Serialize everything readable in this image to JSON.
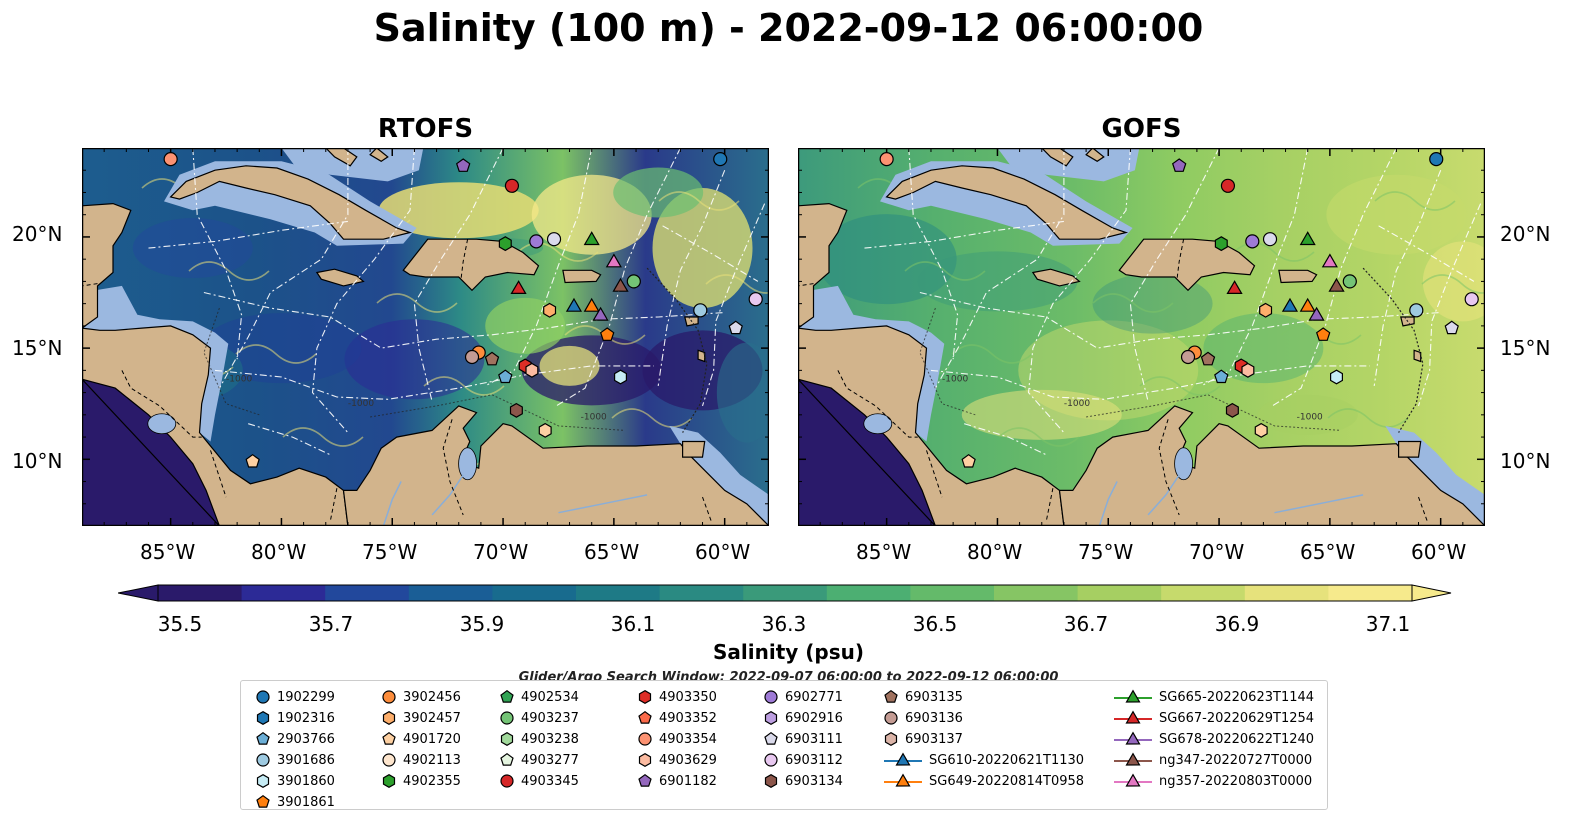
{
  "title": "Salinity (100 m) - 2022-09-12 06:00:00",
  "panels": [
    {
      "title": "RTOFS"
    },
    {
      "title": "GOFS"
    }
  ],
  "map": {
    "lon_range": [
      -89,
      -58
    ],
    "lat_range": [
      7,
      24
    ],
    "lon_ticks": [
      "85°W",
      "80°W",
      "75°W",
      "70°W",
      "65°W",
      "60°W"
    ],
    "lat_ticks": [
      "20°N",
      "15°N",
      "10°N"
    ],
    "contour_labels": [
      "-1000",
      "-1000",
      "-1000"
    ]
  },
  "colorbar": {
    "title": "Salinity (psu)",
    "tick_labels": [
      "35.5",
      "35.7",
      "35.9",
      "36.1",
      "36.3",
      "36.5",
      "36.7",
      "36.9",
      "37.1"
    ],
    "colors": [
      "#2a1a6a",
      "#2c2a96",
      "#22489c",
      "#1a5e96",
      "#186b8e",
      "#1e7a86",
      "#2a8a82",
      "#3a9a7a",
      "#4caf72",
      "#64ba6a",
      "#86c564",
      "#a6cf62",
      "#c6da6c",
      "#e6e27c",
      "#f6ea8c"
    ]
  },
  "search_window": "Glider/Argo Search Window: 2022-09-07 06:00:00 to 2022-09-12 06:00:00",
  "legend": {
    "columns": [
      [
        {
          "label": "1902299",
          "shape": "circle",
          "color": "#1f77b4"
        },
        {
          "label": "1902316",
          "shape": "hexagon",
          "color": "#1f77b4"
        },
        {
          "label": "2903766",
          "shape": "pentagon",
          "color": "#6baed6"
        },
        {
          "label": "3901686",
          "shape": "circle",
          "color": "#9ecae1"
        },
        {
          "label": "3901860",
          "shape": "hexagon",
          "color": "#c6ecf5"
        },
        {
          "label": "3901861",
          "shape": "pentagon",
          "color": "#ff7f0e"
        }
      ],
      [
        {
          "label": "3902456",
          "shape": "circle",
          "color": "#fd8d3c"
        },
        {
          "label": "3902457",
          "shape": "hexagon",
          "color": "#fdae6b"
        },
        {
          "label": "4901720",
          "shape": "pentagon",
          "color": "#fdd0a2"
        },
        {
          "label": "4902113",
          "shape": "circle",
          "color": "#fee6ce"
        },
        {
          "label": "4902355",
          "shape": "hexagon",
          "color": "#2ca02c"
        }
      ],
      [
        {
          "label": "4902534",
          "shape": "pentagon",
          "color": "#31a354"
        },
        {
          "label": "4903237",
          "shape": "circle",
          "color": "#74c476"
        },
        {
          "label": "4903238",
          "shape": "hexagon",
          "color": "#a1d99b"
        },
        {
          "label": "4903277",
          "shape": "pentagon",
          "color": "#e5f5e0"
        },
        {
          "label": "4903345",
          "shape": "circle",
          "color": "#d62728"
        }
      ],
      [
        {
          "label": "4903350",
          "shape": "hexagon",
          "color": "#de2d26"
        },
        {
          "label": "4903352",
          "shape": "pentagon",
          "color": "#fb6a4a"
        },
        {
          "label": "4903354",
          "shape": "circle",
          "color": "#fc9272"
        },
        {
          "label": "4903629",
          "shape": "hexagon",
          "color": "#fcbba1"
        },
        {
          "label": "6901182",
          "shape": "pentagon",
          "color": "#9467bd"
        }
      ],
      [
        {
          "label": "6902771",
          "shape": "circle",
          "color": "#9e7ad6"
        },
        {
          "label": "6902916",
          "shape": "hexagon",
          "color": "#bc9ee0"
        },
        {
          "label": "6903111",
          "shape": "pentagon",
          "color": "#dadaeb"
        },
        {
          "label": "6903112",
          "shape": "circle",
          "color": "#e8c8f0"
        },
        {
          "label": "6903134",
          "shape": "hexagon",
          "color": "#8c564b"
        }
      ],
      [
        {
          "label": "6903135",
          "shape": "pentagon",
          "color": "#a0725f"
        },
        {
          "label": "6903136",
          "shape": "circle",
          "color": "#c49c94"
        },
        {
          "label": "6903137",
          "shape": "hexagon",
          "color": "#dbb4a8"
        },
        {
          "label": "SG610-20220621T1130",
          "shape": "triangle",
          "color": "#1f77b4"
        },
        {
          "label": "SG649-20220814T0958",
          "shape": "triangle",
          "color": "#ff7f0e"
        }
      ],
      [
        {
          "label": "SG665-20220623T1144",
          "shape": "triangle",
          "color": "#2ca02c"
        },
        {
          "label": "SG667-20220629T1254",
          "shape": "triangle",
          "color": "#d62728"
        },
        {
          "label": "SG678-20220622T1240",
          "shape": "triangle",
          "color": "#9467bd"
        },
        {
          "label": "ng347-20220727T0000",
          "shape": "triangle",
          "color": "#8c564b"
        },
        {
          "label": "ng357-20220803T0000",
          "shape": "triangle",
          "color": "#e377c2"
        }
      ]
    ]
  },
  "observations": [
    {
      "id": "4903354",
      "shape": "circle",
      "color": "#fc9272",
      "lon": -85.0,
      "lat": 23.5
    },
    {
      "id": "1902299",
      "shape": "circle",
      "color": "#1f77b4",
      "lon": -60.2,
      "lat": 23.5
    },
    {
      "id": "6901182",
      "shape": "pentagon",
      "color": "#9467bd",
      "lon": -71.8,
      "lat": 23.2
    },
    {
      "id": "4903345",
      "shape": "circle",
      "color": "#d62728",
      "lon": -69.6,
      "lat": 22.3
    },
    {
      "id": "4902355",
      "shape": "hexagon",
      "color": "#2ca02c",
      "lon": -69.9,
      "lat": 19.7
    },
    {
      "id": "6902771",
      "shape": "circle",
      "color": "#9e7ad6",
      "lon": -68.5,
      "lat": 19.8
    },
    {
      "id": "6903112",
      "shape": "circle",
      "color": "#dadaeb",
      "lon": -67.7,
      "lat": 19.9
    },
    {
      "id": "SG665-20220623T1144",
      "shape": "triangle",
      "color": "#2ca02c",
      "lon": -66.0,
      "lat": 19.9
    },
    {
      "id": "ng357-20220803T0000",
      "shape": "triangle",
      "color": "#e377c2",
      "lon": -65.0,
      "lat": 18.9
    },
    {
      "id": "SG667-20220629T1254",
      "shape": "triangle",
      "color": "#d62728",
      "lon": -69.3,
      "lat": 17.7
    },
    {
      "id": "ng347-20220727T0000",
      "shape": "triangle",
      "color": "#8c564b",
      "lon": -64.7,
      "lat": 17.8
    },
    {
      "id": "4903238",
      "shape": "circle",
      "color": "#74c476",
      "lon": -64.1,
      "lat": 18.0
    },
    {
      "id": "6903112-b",
      "shape": "circle",
      "color": "#e8c8f0",
      "lon": -58.6,
      "lat": 17.2
    },
    {
      "id": "SG610-20220621T1130",
      "shape": "triangle",
      "color": "#1f77b4",
      "lon": -66.8,
      "lat": 16.9
    },
    {
      "id": "SG649-20220814T0958",
      "shape": "triangle",
      "color": "#ff7f0e",
      "lon": -66.0,
      "lat": 16.9
    },
    {
      "id": "SG678-20220622T1240",
      "shape": "triangle",
      "color": "#9467bd",
      "lon": -65.6,
      "lat": 16.5
    },
    {
      "id": "3902457",
      "shape": "hexagon",
      "color": "#fdae6b",
      "lon": -67.9,
      "lat": 16.7
    },
    {
      "id": "3901686",
      "shape": "circle",
      "color": "#9ecae1",
      "lon": -61.1,
      "lat": 16.7
    },
    {
      "id": "6903111",
      "shape": "pentagon",
      "color": "#dadaeb",
      "lon": -59.5,
      "lat": 15.9
    },
    {
      "id": "3901861",
      "shape": "pentagon",
      "color": "#ff7f0e",
      "lon": -65.3,
      "lat": 15.6
    },
    {
      "id": "3902456",
      "shape": "circle",
      "color": "#fd8d3c",
      "lon": -71.1,
      "lat": 14.8
    },
    {
      "id": "6903136",
      "shape": "circle",
      "color": "#c49c94",
      "lon": -71.4,
      "lat": 14.6
    },
    {
      "id": "6903135",
      "shape": "pentagon",
      "color": "#a0725f",
      "lon": -70.5,
      "lat": 14.5
    },
    {
      "id": "4903350",
      "shape": "hexagon",
      "color": "#de2d26",
      "lon": -69.0,
      "lat": 14.2
    },
    {
      "id": "4903629",
      "shape": "hexagon",
      "color": "#fcbba1",
      "lon": -68.7,
      "lat": 14.0
    },
    {
      "id": "2903766",
      "shape": "pentagon",
      "color": "#6baed6",
      "lon": -69.9,
      "lat": 13.7
    },
    {
      "id": "3901860",
      "shape": "hexagon",
      "color": "#c6ecf5",
      "lon": -64.7,
      "lat": 13.7
    },
    {
      "id": "6903134",
      "shape": "hexagon",
      "color": "#8c564b",
      "lon": -69.4,
      "lat": 12.2
    },
    {
      "id": "6903137",
      "shape": "hexagon",
      "color": "#fdd0a2",
      "lon": -68.1,
      "lat": 11.3
    },
    {
      "id": "4901720",
      "shape": "pentagon",
      "color": "#fdd0a2",
      "lon": -81.3,
      "lat": 9.9
    }
  ]
}
